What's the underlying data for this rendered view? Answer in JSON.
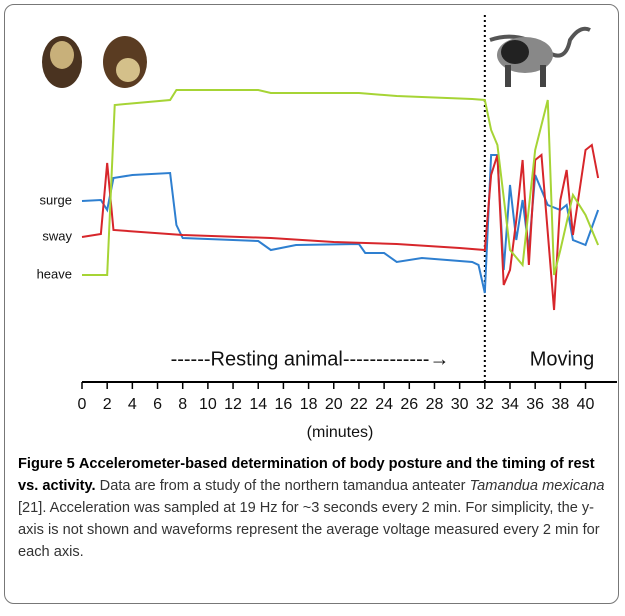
{
  "chart_data": {
    "type": "line",
    "xlim": [
      0,
      42.5
    ],
    "ylim": [
      0,
      350
    ],
    "xticks": [
      0,
      2,
      4,
      6,
      8,
      10,
      12,
      14,
      16,
      18,
      20,
      22,
      24,
      26,
      28,
      30,
      32,
      34,
      36,
      38,
      40
    ],
    "x_label": "(minutes)",
    "vline": 32,
    "annotations": [
      "------Resting animal-------------→",
      "Moving"
    ],
    "series": [
      {
        "name": "surge",
        "color": "#2e7fd0",
        "x": [
          0,
          1.5,
          2,
          2.5,
          4,
          7,
          7.5,
          8,
          12,
          14,
          15,
          17,
          22,
          22.5,
          24,
          25,
          27,
          31,
          31.5,
          32,
          32.5,
          33,
          33.5,
          34,
          34.5,
          35,
          35.5,
          36,
          37,
          38,
          38.5,
          39,
          40,
          41
        ],
        "values": [
          179,
          180,
          170,
          202,
          205,
          207,
          155,
          142,
          140,
          139,
          130,
          135,
          136,
          127,
          127,
          118,
          122,
          118,
          115,
          87,
          225,
          225,
          110,
          195,
          140,
          180,
          130,
          205,
          175,
          170,
          175,
          140,
          135,
          170
        ]
      },
      {
        "name": "sway",
        "color": "#d7262b",
        "x": [
          0,
          1.5,
          2,
          2.5,
          8,
          15,
          20,
          25,
          30,
          32,
          32.5,
          33,
          33.5,
          34,
          34.5,
          35,
          35.5,
          36,
          36.5,
          37.5,
          38,
          38.5,
          39,
          40,
          40.5,
          41
        ],
        "values": [
          143,
          146,
          217,
          150,
          145,
          142,
          138,
          136,
          132,
          130,
          205,
          225,
          95,
          110,
          160,
          220,
          115,
          220,
          225,
          70,
          180,
          210,
          145,
          230,
          235,
          202
        ]
      },
      {
        "name": "heave",
        "color": "#a6d435",
        "x": [
          0,
          2,
          2.6,
          7,
          7.5,
          14,
          15,
          22,
          25,
          31,
          32,
          32.5,
          33,
          34,
          35,
          36,
          37,
          37.5,
          38,
          39,
          40,
          41
        ],
        "values": [
          105,
          105,
          275,
          280,
          290,
          290,
          287,
          287,
          284,
          281,
          280,
          250,
          235,
          130,
          115,
          230,
          280,
          105,
          130,
          185,
          165,
          135
        ]
      }
    ]
  },
  "caption": {
    "label": "Figure 5",
    "title": "Accelerometer-based determination of body posture and the timing of rest vs. activity.",
    "text_before": "Data are from a study of the northern tamandua anteater",
    "species": "Tamandua mexicana",
    "text_after": "[21]. Acceleration was sampled at 19 Hz for ~3 seconds every 2 min. For simplicity, the y-axis is not shown and waveforms represent the average voltage measured every 2 min for each axis."
  }
}
